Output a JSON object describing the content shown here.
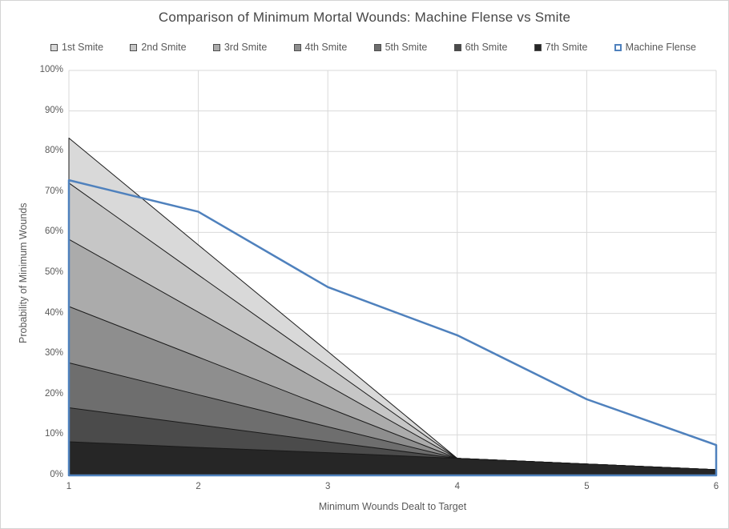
{
  "chart_data": {
    "type": "area",
    "title": "Comparison of Minimum Mortal Wounds: Machine Flense vs Smite",
    "xlabel": "Minimum Wounds Dealt to Target",
    "ylabel": "Probability of Minimum Wounds",
    "x": [
      1,
      2,
      3,
      4,
      5,
      6
    ],
    "xlim": [
      1,
      6
    ],
    "ylim": [
      0,
      100
    ],
    "grid": true,
    "legend_position": "top",
    "x_tick_labels": [
      "1",
      "2",
      "3",
      "4",
      "5",
      "6"
    ],
    "y_tick_values": [
      0,
      10,
      20,
      30,
      40,
      50,
      60,
      70,
      80,
      90,
      100
    ],
    "y_tick_labels": [
      "0%",
      "10%",
      "20%",
      "30%",
      "40%",
      "50%",
      "60%",
      "70%",
      "80%",
      "90%",
      "100%"
    ],
    "series": [
      {
        "name": "1st Smite",
        "kind": "area",
        "fill": "#d9d9d9",
        "border": "#1a1a1a",
        "border_width": 1,
        "values": [
          83.3,
          56.9,
          30.6,
          4.2,
          2.8,
          1.4
        ]
      },
      {
        "name": "2nd Smite",
        "kind": "area",
        "fill": "#c6c6c6",
        "border": "#1a1a1a",
        "border_width": 1,
        "values": [
          72.2,
          49.5,
          26.9,
          4.2,
          2.8,
          1.4
        ]
      },
      {
        "name": "3rd Smite",
        "kind": "area",
        "fill": "#ababab",
        "border": "#1a1a1a",
        "border_width": 1,
        "values": [
          58.3,
          40.3,
          22.2,
          4.2,
          2.8,
          1.4
        ]
      },
      {
        "name": "4th Smite",
        "kind": "area",
        "fill": "#8e8e8e",
        "border": "#1a1a1a",
        "border_width": 1,
        "values": [
          41.7,
          29.2,
          16.7,
          4.2,
          2.8,
          1.4
        ]
      },
      {
        "name": "5th Smite",
        "kind": "area",
        "fill": "#6e6e6e",
        "border": "#1a1a1a",
        "border_width": 1,
        "values": [
          27.8,
          19.9,
          12.0,
          4.2,
          2.8,
          1.4
        ]
      },
      {
        "name": "6th Smite",
        "kind": "area",
        "fill": "#4b4b4b",
        "border": "#1a1a1a",
        "border_width": 1,
        "values": [
          16.7,
          12.5,
          8.3,
          4.2,
          2.8,
          1.4
        ]
      },
      {
        "name": "7th Smite",
        "kind": "area",
        "fill": "#262626",
        "border": "#1a1a1a",
        "border_width": 1,
        "values": [
          8.3,
          6.9,
          5.6,
          4.2,
          2.8,
          1.4
        ]
      },
      {
        "name": "Machine Flense",
        "kind": "outline",
        "fill": "none",
        "border": "#4f81bd",
        "border_width": 2.5,
        "values": [
          72.9,
          65.1,
          46.5,
          34.6,
          18.8,
          7.5
        ]
      }
    ],
    "colors": {
      "gridline": "#d9d9d9",
      "axis_text": "#595959",
      "title_text": "#474747",
      "background": "#ffffff",
      "chart_border": "#d4d4d4"
    }
  }
}
